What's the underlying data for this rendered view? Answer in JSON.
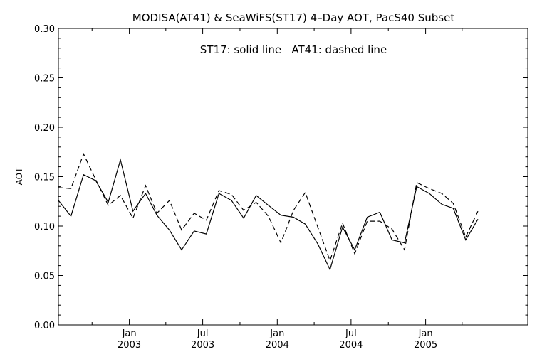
{
  "chart_data": {
    "type": "line",
    "title": "MODISA(AT41) & SeaWiFS(ST17) 4–Day AOT, PacS40 Subset",
    "annotation": "ST17: solid line   AT41: dashed line",
    "xlabel": "",
    "ylabel": "AOT",
    "ylim": [
      0.0,
      0.3
    ],
    "xlim": [
      "2002-07-10",
      "2005-09-10"
    ],
    "yticks": [
      "0.00",
      "0.05",
      "0.10",
      "0.15",
      "0.20",
      "0.25",
      "0.30"
    ],
    "xticks": [
      {
        "date": "2003-01-01",
        "month": "Jan",
        "year": "2003"
      },
      {
        "date": "2003-07-01",
        "month": "Jul",
        "year": "2003"
      },
      {
        "date": "2004-01-01",
        "month": "Jan",
        "year": "2004"
      },
      {
        "date": "2004-07-01",
        "month": "Jul",
        "year": "2004"
      },
      {
        "date": "2005-01-01",
        "month": "Jan",
        "year": "2005"
      }
    ],
    "grid": false,
    "legend": "none",
    "series": [
      {
        "style": "solid",
        "points": [
          [
            "2002-07-10",
            0.126
          ],
          [
            "2002-08-10",
            0.11
          ],
          [
            "2002-09-10",
            0.152
          ],
          [
            "2002-10-10",
            0.146
          ],
          [
            "2002-11-10",
            0.124
          ],
          [
            "2002-12-10",
            0.167
          ],
          [
            "2003-01-10",
            0.115
          ],
          [
            "2003-02-10",
            0.133
          ],
          [
            "2003-03-10",
            0.111
          ],
          [
            "2003-04-10",
            0.096
          ],
          [
            "2003-05-10",
            0.076
          ],
          [
            "2003-06-10",
            0.095
          ],
          [
            "2003-07-10",
            0.092
          ],
          [
            "2003-08-10",
            0.133
          ],
          [
            "2003-09-10",
            0.126
          ],
          [
            "2003-10-10",
            0.108
          ],
          [
            "2003-11-10",
            0.131
          ],
          [
            "2003-12-10",
            0.121
          ],
          [
            "2004-01-10",
            0.111
          ],
          [
            "2004-02-10",
            0.109
          ],
          [
            "2004-03-10",
            0.102
          ],
          [
            "2004-04-10",
            0.082
          ],
          [
            "2004-05-10",
            0.056
          ],
          [
            "2004-06-10",
            0.099
          ],
          [
            "2004-07-10",
            0.076
          ],
          [
            "2004-08-10",
            0.109
          ],
          [
            "2004-09-10",
            0.114
          ],
          [
            "2004-10-10",
            0.086
          ],
          [
            "2004-11-10",
            0.083
          ],
          [
            "2004-12-10",
            0.14
          ],
          [
            "2005-01-10",
            0.133
          ],
          [
            "2005-02-10",
            0.122
          ],
          [
            "2005-03-10",
            0.118
          ],
          [
            "2005-04-10",
            0.086
          ],
          [
            "2005-05-10",
            0.107
          ]
        ]
      },
      {
        "style": "dashed",
        "points": [
          [
            "2002-07-10",
            0.139
          ],
          [
            "2002-08-10",
            0.138
          ],
          [
            "2002-09-10",
            0.173
          ],
          [
            "2002-10-10",
            0.147
          ],
          [
            "2002-11-10",
            0.121
          ],
          [
            "2002-12-10",
            0.131
          ],
          [
            "2003-01-10",
            0.108
          ],
          [
            "2003-02-10",
            0.141
          ],
          [
            "2003-03-10",
            0.113
          ],
          [
            "2003-04-10",
            0.126
          ],
          [
            "2003-05-10",
            0.096
          ],
          [
            "2003-06-10",
            0.113
          ],
          [
            "2003-07-10",
            0.106
          ],
          [
            "2003-08-10",
            0.136
          ],
          [
            "2003-09-10",
            0.132
          ],
          [
            "2003-10-10",
            0.116
          ],
          [
            "2003-11-10",
            0.124
          ],
          [
            "2003-12-10",
            0.11
          ],
          [
            "2004-01-10",
            0.083
          ],
          [
            "2004-02-10",
            0.116
          ],
          [
            "2004-03-10",
            0.134
          ],
          [
            "2004-04-10",
            0.099
          ],
          [
            "2004-05-10",
            0.065
          ],
          [
            "2004-06-10",
            0.103
          ],
          [
            "2004-07-10",
            0.072
          ],
          [
            "2004-08-10",
            0.105
          ],
          [
            "2004-09-10",
            0.105
          ],
          [
            "2004-10-10",
            0.097
          ],
          [
            "2004-11-10",
            0.076
          ],
          [
            "2004-12-10",
            0.144
          ],
          [
            "2005-01-10",
            0.138
          ],
          [
            "2005-02-10",
            0.133
          ],
          [
            "2005-03-10",
            0.123
          ],
          [
            "2005-04-10",
            0.089
          ],
          [
            "2005-05-10",
            0.115
          ]
        ]
      }
    ]
  }
}
